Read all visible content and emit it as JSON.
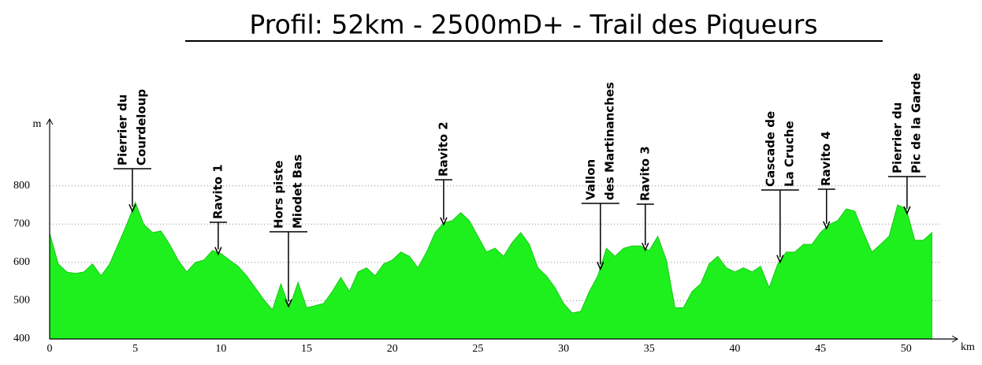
{
  "chart_data": {
    "type": "area",
    "title": "Profil: 52km - 2500mD+ - Trail des Piqueurs",
    "y_label": "m",
    "x_label": "km",
    "color": "#1ef01e",
    "xlim": [
      0,
      53
    ],
    "ylim": [
      400,
      960
    ],
    "xticks": [
      0,
      5,
      10,
      15,
      20,
      25,
      30,
      35,
      40,
      45,
      50
    ],
    "yticks": [
      400,
      500,
      600,
      700,
      800
    ],
    "grid": true,
    "x": [
      0,
      0.5,
      1,
      1.5,
      2,
      2.5,
      3,
      3.5,
      4,
      4.5,
      5,
      5.5,
      6,
      6.5,
      7,
      7.5,
      8,
      8.5,
      9,
      9.5,
      10,
      10.5,
      11,
      11.5,
      12,
      12.5,
      13,
      13.5,
      14,
      14.5,
      15,
      15.5,
      16,
      16.5,
      17,
      17.5,
      18,
      18.5,
      19,
      19.5,
      20,
      20.5,
      21,
      21.5,
      22,
      22.5,
      23,
      23.5,
      24,
      24.5,
      25,
      25.5,
      26,
      26.5,
      27,
      27.5,
      28,
      28.5,
      29,
      29.5,
      30,
      30.5,
      31,
      31.5,
      32,
      32.5,
      33,
      33.5,
      34,
      34.5,
      35,
      35.5,
      36,
      36.5,
      37,
      37.5,
      38,
      38.5,
      39,
      39.5,
      40,
      40.5,
      41,
      41.5,
      42,
      42.5,
      43,
      43.5,
      44,
      44.5,
      45,
      45.5,
      46,
      46.5,
      47,
      47.5,
      48,
      48.5,
      49,
      49.5,
      50,
      50.5,
      51,
      51.5
    ],
    "values": [
      676,
      596,
      575,
      571,
      575,
      596,
      565,
      596,
      647,
      699,
      757,
      699,
      678,
      682,
      647,
      606,
      575,
      600,
      606,
      631,
      623,
      606,
      590,
      565,
      534,
      503,
      476,
      544,
      482,
      548,
      482,
      487,
      493,
      524,
      561,
      524,
      575,
      586,
      565,
      596,
      606,
      627,
      616,
      586,
      627,
      678,
      703,
      709,
      730,
      709,
      668,
      627,
      637,
      616,
      652,
      678,
      647,
      586,
      565,
      534,
      493,
      468,
      472,
      524,
      565,
      637,
      616,
      637,
      643,
      643,
      631,
      668,
      606,
      482,
      482,
      524,
      544,
      596,
      616,
      586,
      575,
      586,
      575,
      590,
      534,
      596,
      627,
      627,
      647,
      647,
      678,
      699,
      709,
      740,
      734,
      678,
      627,
      647,
      668,
      750,
      740,
      658,
      658,
      678
    ],
    "annotations": [
      {
        "lines": [
          "Pierrier du",
          "Courdeloup"
        ],
        "x": 4.83,
        "color": "#000000"
      },
      {
        "lines": [
          "Ravito 1"
        ],
        "x": 9.84,
        "color": "#d01818"
      },
      {
        "lines": [
          "Hors piste",
          "Miodet Bas"
        ],
        "x": 13.94,
        "color": "#000000"
      },
      {
        "lines": [
          "Ravito 2"
        ],
        "x": 23.0,
        "color": "#d01818"
      },
      {
        "lines": [
          "Vallon",
          "des Martinanches"
        ],
        "x": 32.15,
        "color": "#000000"
      },
      {
        "lines": [
          "Ravito 3"
        ],
        "x": 34.77,
        "color": "#d01818"
      },
      {
        "lines": [
          "Cascade de",
          "La Cruche"
        ],
        "x": 42.64,
        "color": "#000000"
      },
      {
        "lines": [
          "Ravito 4"
        ],
        "x": 45.35,
        "color": "#d01818"
      },
      {
        "lines": [
          "Pierrier du",
          "Pic de la Garde"
        ],
        "x": 50.05,
        "color": "#000000"
      }
    ]
  }
}
